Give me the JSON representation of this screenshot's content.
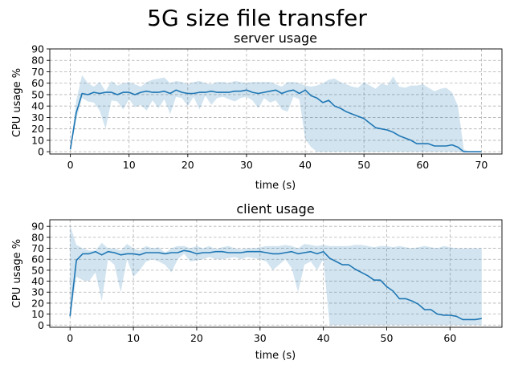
{
  "figure": {
    "title": "5G size file transfer"
  },
  "chart_data": [
    {
      "type": "area",
      "title": "server usage",
      "xlabel": "time (s)",
      "ylabel": "CPU usage %",
      "xlim": [
        -3.5,
        73.5
      ],
      "ylim": [
        -2,
        90
      ],
      "xticks": [
        0,
        10,
        20,
        30,
        40,
        50,
        60,
        70
      ],
      "yticks": [
        0,
        10,
        20,
        30,
        40,
        50,
        60,
        70,
        80,
        90
      ],
      "grid": true,
      "series": [
        {
          "color": "#1f77b4",
          "x": [
            0,
            1,
            2,
            3,
            4,
            5,
            6,
            7,
            8,
            9,
            10,
            11,
            12,
            13,
            14,
            15,
            16,
            17,
            18,
            19,
            20,
            21,
            22,
            23,
            24,
            25,
            26,
            27,
            28,
            29,
            30,
            31,
            32,
            33,
            34,
            35,
            36,
            37,
            38,
            39,
            40,
            41,
            42,
            43,
            44,
            45,
            46,
            47,
            48,
            49,
            50,
            51,
            52,
            53,
            54,
            55,
            56,
            57,
            58,
            59,
            60,
            61,
            62,
            63,
            64,
            65,
            66,
            67,
            68,
            69,
            70
          ],
          "mean": [
            2,
            34,
            51,
            50,
            52,
            51,
            52,
            52,
            50,
            52,
            52,
            50,
            52,
            53,
            52,
            52,
            53,
            51,
            54,
            52,
            51,
            51,
            52,
            52,
            53,
            52,
            52,
            52,
            53,
            53,
            54,
            52,
            51,
            52,
            53,
            54,
            51,
            53,
            54,
            51,
            54,
            49,
            47,
            43,
            45,
            40,
            38,
            35,
            33,
            31,
            29,
            25,
            21,
            20,
            19,
            17,
            14,
            12,
            10,
            7,
            7,
            7,
            5,
            5,
            5,
            6,
            4,
            0,
            0,
            0,
            0
          ],
          "upper": [
            3,
            45,
            67,
            60,
            57,
            61,
            53,
            62,
            58,
            60,
            61,
            59,
            57,
            61,
            63,
            64,
            65,
            60,
            62,
            61,
            59,
            61,
            62,
            60,
            59,
            61,
            61,
            60,
            62,
            61,
            60,
            61,
            61,
            61,
            61,
            59,
            57,
            61,
            61,
            60,
            58,
            57,
            58,
            60,
            63,
            64,
            61,
            59,
            57,
            56,
            61,
            58,
            55,
            60,
            58,
            66,
            57,
            56,
            58,
            58,
            59,
            56,
            53,
            55,
            56,
            52,
            40,
            2,
            0,
            0,
            0
          ],
          "lower": [
            1,
            28,
            47,
            44,
            43,
            36,
            20,
            45,
            44,
            37,
            46,
            39,
            41,
            36,
            45,
            38,
            46,
            33,
            48,
            47,
            40,
            48,
            37,
            49,
            41,
            47,
            48,
            46,
            44,
            47,
            48,
            45,
            38,
            47,
            43,
            45,
            37,
            35,
            48,
            46,
            11,
            4,
            0,
            0,
            0,
            0,
            0,
            0,
            0,
            0,
            0,
            0,
            0,
            0,
            0,
            0,
            0,
            0,
            0,
            0,
            0,
            0,
            0,
            0,
            0,
            0,
            0,
            0,
            0,
            0,
            0
          ]
        }
      ]
    },
    {
      "type": "area",
      "title": "client usage",
      "xlabel": "time (s)",
      "ylabel": "CPU usage %",
      "xlim": [
        -3.2,
        68.2
      ],
      "ylim": [
        -2,
        96
      ],
      "xticks": [
        0,
        10,
        20,
        30,
        40,
        50,
        60
      ],
      "yticks": [
        0,
        10,
        20,
        30,
        40,
        50,
        60,
        70,
        80,
        90
      ],
      "grid": true,
      "series": [
        {
          "color": "#1f77b4",
          "x": [
            0,
            1,
            2,
            3,
            4,
            5,
            6,
            7,
            8,
            9,
            10,
            11,
            12,
            13,
            14,
            15,
            16,
            17,
            18,
            19,
            20,
            21,
            22,
            23,
            24,
            25,
            26,
            27,
            28,
            29,
            30,
            31,
            32,
            33,
            34,
            35,
            36,
            37,
            38,
            39,
            40,
            41,
            42,
            43,
            44,
            45,
            46,
            47,
            48,
            49,
            50,
            51,
            52,
            53,
            54,
            55,
            56,
            57,
            58,
            59,
            60,
            61,
            62,
            63,
            64,
            65
          ],
          "mean": [
            8,
            59,
            65,
            65,
            67,
            64,
            67,
            66,
            64,
            65,
            65,
            64,
            66,
            66,
            66,
            65,
            66,
            66,
            68,
            67,
            65,
            66,
            66,
            67,
            67,
            66,
            66,
            66,
            67,
            67,
            67,
            66,
            65,
            65,
            66,
            67,
            65,
            66,
            67,
            65,
            67,
            61,
            58,
            55,
            55,
            51,
            48,
            45,
            41,
            41,
            35,
            31,
            24,
            24,
            22,
            19,
            14,
            14,
            10,
            9,
            9,
            8,
            5,
            5,
            5,
            6
          ],
          "upper": [
            91,
            73,
            70,
            68,
            68,
            75,
            70,
            70,
            68,
            74,
            70,
            68,
            72,
            70,
            71,
            66,
            70,
            72,
            72,
            70,
            72,
            70,
            72,
            69,
            71,
            72,
            70,
            69,
            70,
            70,
            71,
            72,
            72,
            72,
            73,
            72,
            70,
            74,
            73,
            72,
            73,
            72,
            72,
            72,
            72,
            73,
            73,
            72,
            71,
            72,
            72,
            71,
            72,
            71,
            70,
            71,
            72,
            71,
            70,
            72,
            71,
            70,
            70,
            70,
            70,
            70
          ],
          "lower": [
            5,
            44,
            41,
            40,
            48,
            22,
            60,
            55,
            30,
            60,
            44,
            50,
            58,
            60,
            58,
            55,
            48,
            60,
            65,
            58,
            59,
            60,
            62,
            60,
            60,
            61,
            62,
            60,
            62,
            61,
            60,
            58,
            50,
            55,
            60,
            52,
            30,
            55,
            58,
            50,
            60,
            0,
            0,
            0,
            0,
            0,
            0,
            0,
            0,
            0,
            0,
            0,
            0,
            0,
            0,
            0,
            0,
            0,
            0,
            0,
            0,
            0,
            0,
            0,
            0,
            0
          ]
        }
      ]
    }
  ]
}
